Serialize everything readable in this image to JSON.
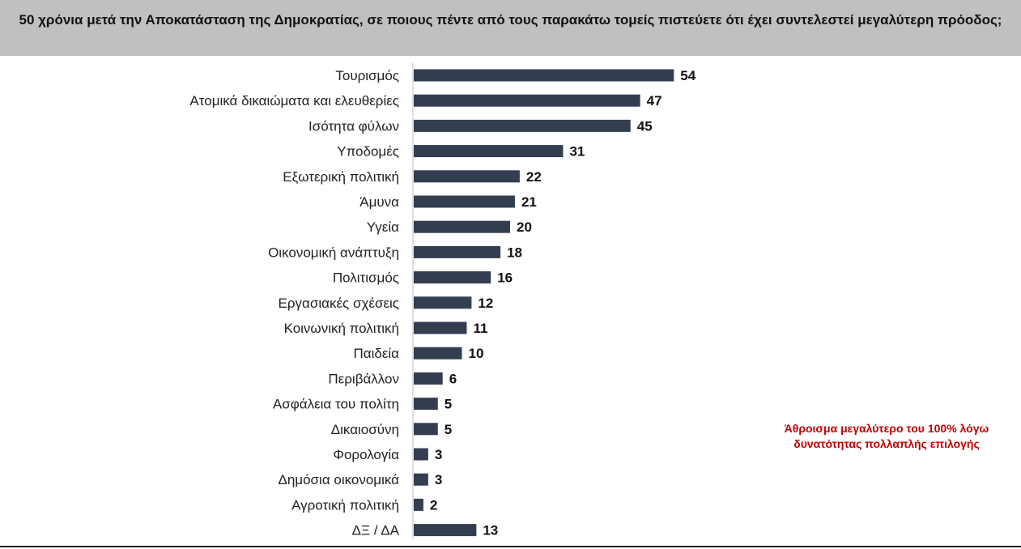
{
  "header": {
    "title": "50 χρόνια μετά την Αποκατάσταση της Δημοκρατίας, σε ποιους πέντε από τους παρακάτω τομείς πιστεύετε ότι έχει συντελεστεί μεγαλύτερη πρόοδος;"
  },
  "note": "Άθροισμα μεγαλύτερο του 100% λόγω\nδυνατότητας πολλαπλής επιλογής",
  "colors": {
    "bar": "#333f50",
    "header_bg": "#c0c0c0",
    "note": "#c00000"
  },
  "chart_data": {
    "type": "bar",
    "orientation": "horizontal",
    "categories": [
      "Τουρισμός",
      "Ατομικά δικαιώματα και ελευθερίες",
      "Ισότητα φύλων",
      "Υποδομές",
      "Εξωτερική πολιτική",
      "Άμυνα",
      "Υγεία",
      "Οικονομική ανάπτυξη",
      "Πολιτισμός",
      "Εργασιακές σχέσεις",
      "Κοινωνική πολιτική",
      "Παιδεία",
      "Περιβάλλον",
      "Ασφάλεια του πολίτη",
      "Δικαιοσύνη",
      "Φορολογία",
      "Δημόσια οικονομικά",
      "Αγροτική πολιτική",
      "ΔΞ / ΔΑ"
    ],
    "values": [
      54,
      47,
      45,
      31,
      22,
      21,
      20,
      18,
      16,
      12,
      11,
      10,
      6,
      5,
      5,
      3,
      3,
      2,
      13
    ],
    "title": "",
    "xlabel": "",
    "ylabel": "",
    "xlim": [
      0,
      60
    ],
    "grid": false,
    "legend": "none"
  }
}
